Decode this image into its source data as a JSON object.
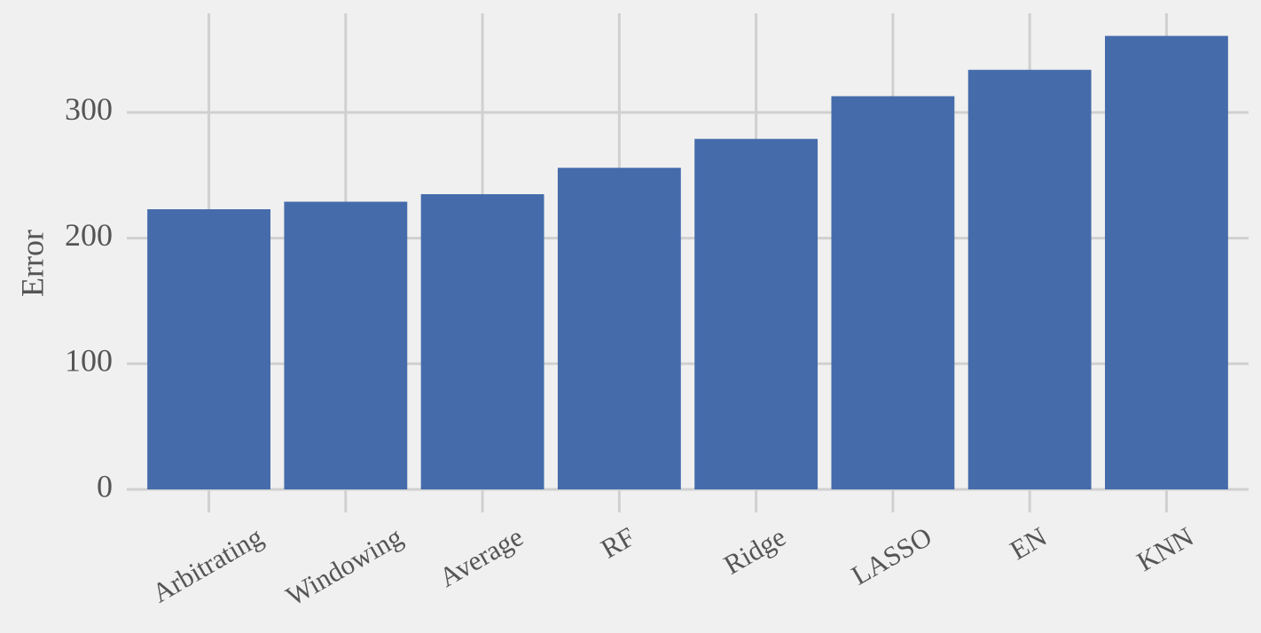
{
  "chart_data": {
    "type": "bar",
    "y_label": "Error",
    "categories": [
      "Arbitrating",
      "Windowing",
      "Average",
      "RF",
      "Ridge",
      "LASSO",
      "EN",
      "KNN"
    ],
    "values": [
      223,
      229,
      235,
      256,
      279,
      313,
      334,
      361
    ],
    "color": "#456bab",
    "ylim": [
      0,
      379
    ],
    "yticks": [
      0,
      100,
      200,
      300
    ],
    "grid": true
  }
}
